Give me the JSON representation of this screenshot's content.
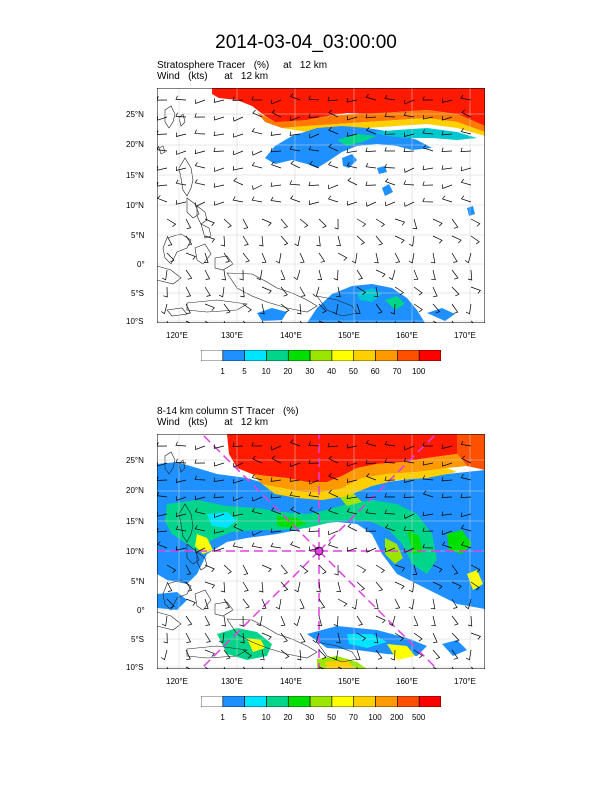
{
  "title": "2014-03-04_03:00:00",
  "panels": [
    {
      "label_line1": "Stratosphere Tracer   (%)     at   12 km",
      "label_line2": "Wind   (kts)      at   12 km",
      "lon_ticks": [
        "120°E",
        "130°E",
        "140°E",
        "150°E",
        "160°E",
        "170°E"
      ],
      "lat_ticks": [
        "25°N",
        "20°N",
        "15°N",
        "10°N",
        "5°N",
        "0°",
        "5°S",
        "10°S"
      ],
      "colorbar_labels": [
        "1",
        "5",
        "10",
        "20",
        "30",
        "40",
        "50",
        "60",
        "70",
        "100"
      ],
      "colors": [
        "#ffffff",
        "#1e90ff",
        "#00e5ff",
        "#00d58a",
        "#00e000",
        "#9ae600",
        "#ffff00",
        "#ffd000",
        "#ff9900",
        "#ff5000",
        "#ff0000"
      ]
    },
    {
      "label_line1": "8-14 km column ST Tracer   (%)",
      "label_line2": "Wind   (kts)      at   12 km",
      "lon_ticks": [
        "120°E",
        "130°E",
        "140°E",
        "150°E",
        "160°E",
        "170°E"
      ],
      "lat_ticks": [
        "25°N",
        "20°N",
        "15°N",
        "10°N",
        "5°N",
        "0°",
        "5°S",
        "10°S"
      ],
      "colorbar_labels": [
        "1",
        "5",
        "10",
        "20",
        "30",
        "50",
        "70",
        "100",
        "200",
        "500"
      ],
      "colors": [
        "#ffffff",
        "#1e90ff",
        "#00e5ff",
        "#00d58a",
        "#00e000",
        "#9ae600",
        "#ffff00",
        "#ffd000",
        "#ff9900",
        "#ff5000",
        "#ff0000"
      ],
      "marker_color": "#e040e0"
    }
  ]
}
